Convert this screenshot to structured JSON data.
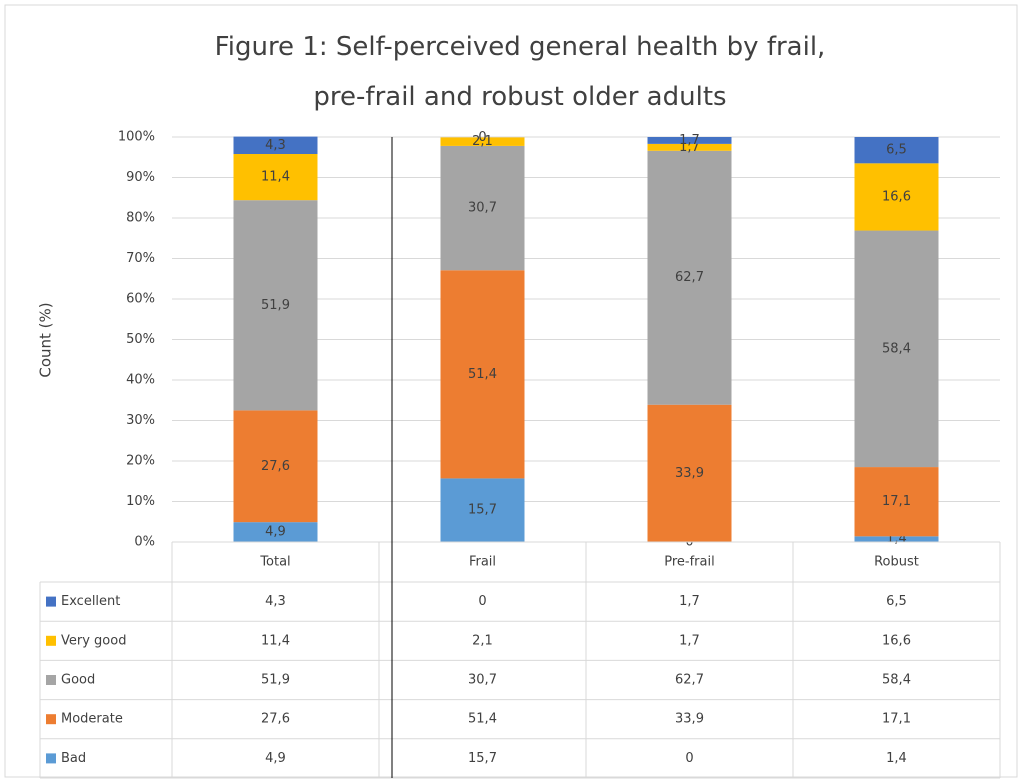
{
  "chart_data": {
    "type": "stacked_bar",
    "title": "Figure 1: Self-perceived general health by frail, pre-frail and robust older adults",
    "y_label": "Count (%)",
    "categories": [
      "Total",
      "Frail",
      "Pre-frail",
      "Robust"
    ],
    "series": [
      {
        "name": "Bad",
        "color": "#5b9bd5",
        "values": [
          4.9,
          15.7,
          0,
          1.4
        ],
        "value_labels": [
          "4,9",
          "15,7",
          "0",
          "1,4"
        ]
      },
      {
        "name": "Moderate",
        "color": "#ed7d31",
        "values": [
          27.6,
          51.4,
          33.9,
          17.1
        ],
        "value_labels": [
          "27,6",
          "51,4",
          "33,9",
          "17,1"
        ]
      },
      {
        "name": "Good",
        "color": "#a5a5a5",
        "values": [
          51.9,
          30.7,
          62.7,
          58.4
        ],
        "value_labels": [
          "51,9",
          "30,7",
          "62,7",
          "58,4"
        ]
      },
      {
        "name": "Very good",
        "color": "#ffc000",
        "values": [
          11.4,
          2.1,
          1.7,
          16.6
        ],
        "value_labels": [
          "11,4",
          "2,1",
          "1,7",
          "16,6"
        ]
      },
      {
        "name": "Excellent",
        "color": "#4472c4",
        "values": [
          4.3,
          0,
          1.7,
          6.5
        ],
        "value_labels": [
          "4,3",
          "0",
          "1,7",
          "6,5"
        ]
      }
    ],
    "ylim": [
      0,
      100
    ],
    "yticks": [
      {
        "value": 0,
        "label": "0%"
      },
      {
        "value": 10,
        "label": "10%"
      },
      {
        "value": 20,
        "label": "20%"
      },
      {
        "value": 30,
        "label": "30%"
      },
      {
        "value": 40,
        "label": "40%"
      },
      {
        "value": 50,
        "label": "50%"
      },
      {
        "value": 60,
        "label": "60%"
      },
      {
        "value": 70,
        "label": "70%"
      },
      {
        "value": 80,
        "label": "80%"
      },
      {
        "value": 90,
        "label": "90%"
      },
      {
        "value": 100,
        "label": "100%"
      }
    ],
    "grid": true,
    "data_table": true
  }
}
